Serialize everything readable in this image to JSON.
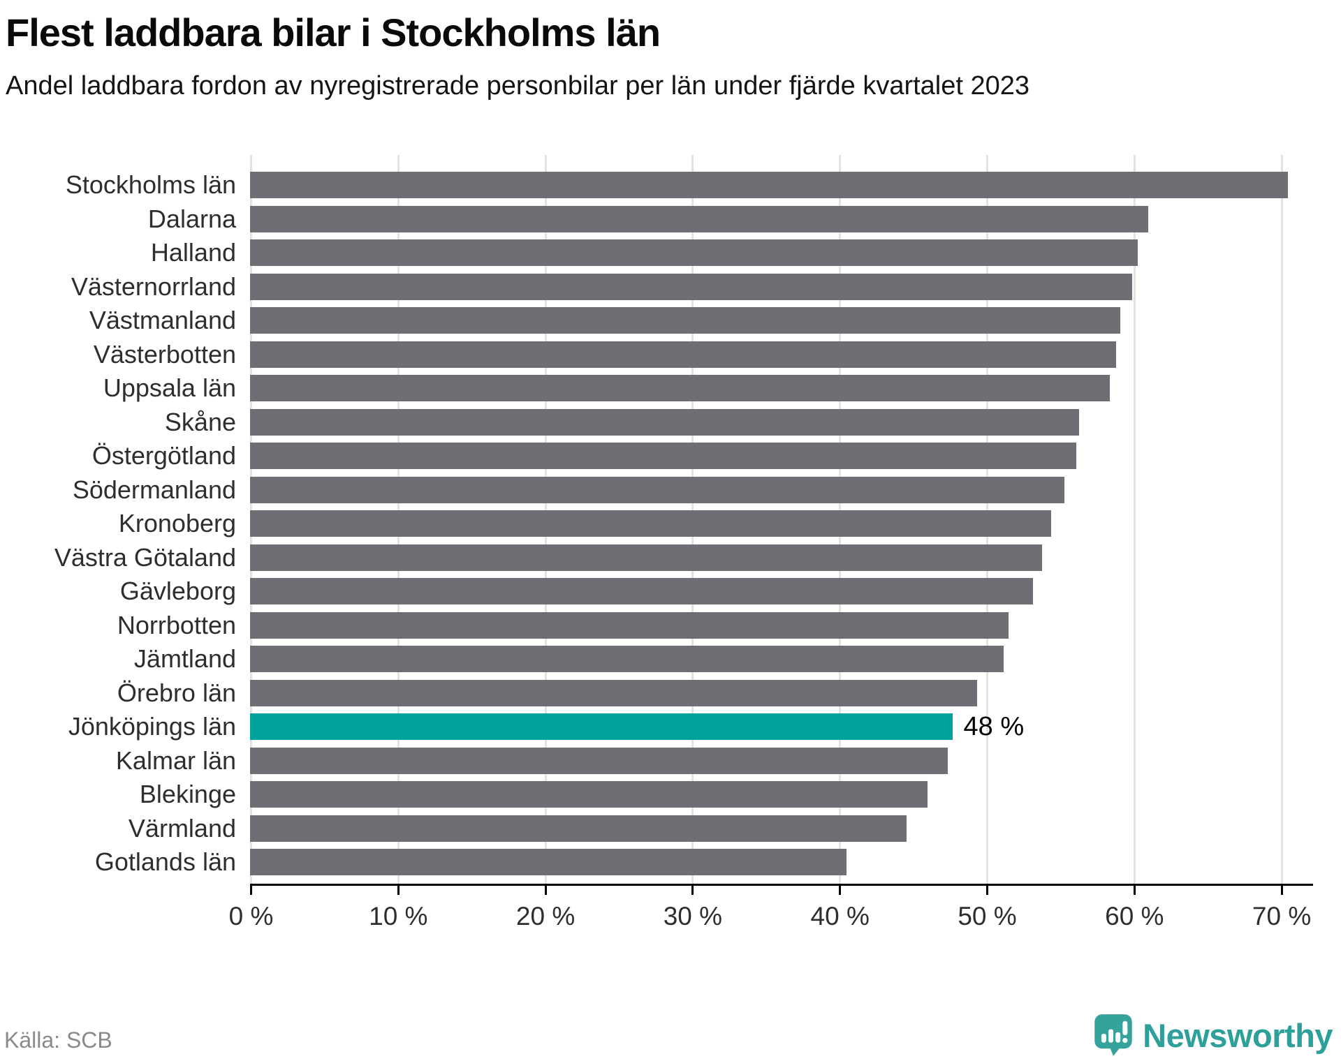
{
  "header": {
    "title": "Flest laddbara bilar i Stockholms län",
    "subtitle": "Andel laddbara fordon av nyregistrerade personbilar per län under fjärde kvartalet 2023"
  },
  "chart_data": {
    "type": "bar",
    "orientation": "horizontal",
    "title": "Flest laddbara bilar i Stockholms län",
    "subtitle": "Andel laddbara fordon av nyregistrerade personbilar per län under fjärde kvartalet 2023",
    "categories": [
      "Stockholms län",
      "Dalarna",
      "Halland",
      "Västernorrland",
      "Västmanland",
      "Västerbotten",
      "Uppsala län",
      "Skåne",
      "Östergötland",
      "Södermanland",
      "Kronoberg",
      "Västra Götaland",
      "Gävleborg",
      "Norrbotten",
      "Jämtland",
      "Örebro län",
      "Jönköpings län",
      "Kalmar län",
      "Blekinge",
      "Värmland",
      "Gotlands län"
    ],
    "values": [
      70.5,
      61.0,
      60.3,
      59.9,
      59.1,
      58.8,
      58.4,
      56.3,
      56.1,
      55.3,
      54.4,
      53.8,
      53.2,
      51.5,
      51.2,
      49.4,
      47.7,
      47.4,
      46.0,
      44.6,
      40.5
    ],
    "highlight_index": 16,
    "highlight_value_label": "48 %",
    "x_axis": {
      "min": 0,
      "max": 70,
      "tick_step": 10,
      "tick_labels": [
        "0 %",
        "10 %",
        "20 %",
        "30 %",
        "40 %",
        "50 %",
        "60 %",
        "70 %"
      ]
    },
    "grid": "vertical",
    "legend": "none",
    "colors": {
      "bar": "#6e6e74",
      "highlight": "#00a39b",
      "gridline": "#e2e2e2",
      "axis": "#000000"
    }
  },
  "footer": {
    "source": "Källa: SCB",
    "brand": "Newsworthy",
    "brand_icon": "speech-bubble-bar-chart-icon",
    "brand_color": "#2da099",
    "brand_icon_color": "#35a39b"
  }
}
